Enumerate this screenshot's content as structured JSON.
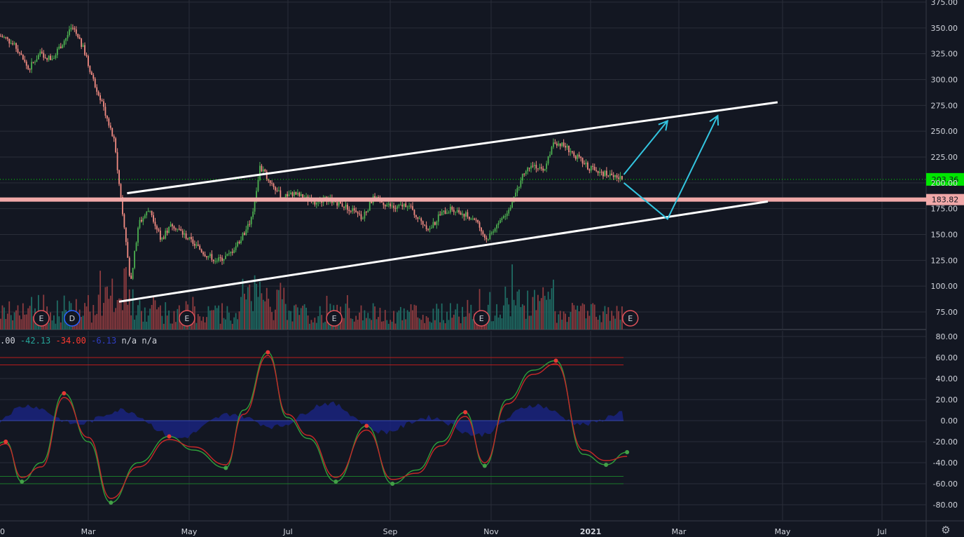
{
  "chart_data": [
    {
      "type": "candlestick",
      "panel": "price",
      "ylim": [
        62,
        375
      ],
      "price_ticks": [
        "75.00",
        "100.00",
        "125.00",
        "150.00",
        "175.00",
        "200.00",
        "225.00",
        "250.00",
        "275.00",
        "300.00",
        "325.00",
        "350.00",
        "375.00"
      ],
      "time_labels": [
        "0",
        "Mar",
        "May",
        "Jul",
        "Sep",
        "Nov",
        "2021",
        "Mar",
        "May",
        "Jul"
      ],
      "last_price": {
        "label": "203.36",
        "value": 203.36,
        "color": "#00e600"
      },
      "horizontal_level": {
        "label": "183.82",
        "value": 183.82,
        "color": "#f0a8a8"
      },
      "close_path": [
        [
          "2020-01-02",
          345
        ],
        [
          "2020-01-10",
          340
        ],
        [
          "2020-01-17",
          330
        ],
        [
          "2020-01-24",
          310
        ],
        [
          "2020-01-31",
          325
        ],
        [
          "2020-02-07",
          320
        ],
        [
          "2020-02-14",
          335
        ],
        [
          "2020-02-20",
          350
        ],
        [
          "2020-02-27",
          330
        ],
        [
          "2020-03-04",
          300
        ],
        [
          "2020-03-10",
          275
        ],
        [
          "2020-03-17",
          240
        ],
        [
          "2020-03-20",
          200
        ],
        [
          "2020-03-24",
          150
        ],
        [
          "2020-03-27",
          100
        ],
        [
          "2020-04-01",
          160
        ],
        [
          "2020-04-08",
          175
        ],
        [
          "2020-04-15",
          145
        ],
        [
          "2020-04-22",
          160
        ],
        [
          "2020-04-29",
          150
        ],
        [
          "2020-05-06",
          140
        ],
        [
          "2020-05-13",
          130
        ],
        [
          "2020-05-20",
          125
        ],
        [
          "2020-05-27",
          130
        ],
        [
          "2020-06-03",
          145
        ],
        [
          "2020-06-10",
          165
        ],
        [
          "2020-06-15",
          215
        ],
        [
          "2020-06-22",
          200
        ],
        [
          "2020-06-29",
          185
        ],
        [
          "2020-07-06",
          190
        ],
        [
          "2020-07-13",
          185
        ],
        [
          "2020-07-20",
          180
        ],
        [
          "2020-07-27",
          185
        ],
        [
          "2020-08-03",
          180
        ],
        [
          "2020-08-10",
          175
        ],
        [
          "2020-08-17",
          165
        ],
        [
          "2020-08-24",
          185
        ],
        [
          "2020-08-31",
          180
        ],
        [
          "2020-09-07",
          175
        ],
        [
          "2020-09-14",
          180
        ],
        [
          "2020-09-21",
          165
        ],
        [
          "2020-09-28",
          155
        ],
        [
          "2020-10-05",
          170
        ],
        [
          "2020-10-12",
          175
        ],
        [
          "2020-10-19",
          170
        ],
        [
          "2020-10-26",
          165
        ],
        [
          "2020-11-02",
          145
        ],
        [
          "2020-11-09",
          160
        ],
        [
          "2020-11-16",
          175
        ],
        [
          "2020-11-20",
          190
        ],
        [
          "2020-11-24",
          205
        ],
        [
          "2020-11-30",
          220
        ],
        [
          "2020-12-07",
          210
        ],
        [
          "2020-12-14",
          240
        ],
        [
          "2020-12-21",
          235
        ],
        [
          "2020-12-28",
          225
        ],
        [
          "2021-01-04",
          215
        ],
        [
          "2021-01-11",
          210
        ],
        [
          "2021-01-18",
          208
        ],
        [
          "2021-01-25",
          203.36
        ]
      ],
      "events": [
        {
          "date": "2020-02-01",
          "label": "E",
          "kind": "earnings"
        },
        {
          "date": "2020-02-20",
          "label": "D",
          "kind": "dividend"
        },
        {
          "date": "2020-05-01",
          "label": "E",
          "kind": "earnings"
        },
        {
          "date": "2020-07-31",
          "label": "E",
          "kind": "earnings"
        },
        {
          "date": "2020-10-30",
          "label": "E",
          "kind": "earnings"
        },
        {
          "date": "2021-01-30",
          "label": "E",
          "kind": "earnings"
        }
      ],
      "trendlines": [
        {
          "name": "upper-channel",
          "color": "#ffffff",
          "points": [
            [
              "2020-03-25",
              190
            ],
            [
              "2021-05-01",
              278
            ]
          ]
        },
        {
          "name": "lower-channel",
          "color": "#ffffff",
          "points": [
            [
              "2020-03-20",
              85
            ],
            [
              "2021-04-25",
              182
            ]
          ]
        },
        {
          "name": "projection-arrow-1",
          "color": "#33c5e0",
          "points": [
            [
              "2021-01-26",
              208
            ],
            [
              "2021-02-22",
              260
            ]
          ]
        },
        {
          "name": "projection-path-2",
          "color": "#33c5e0",
          "points": [
            [
              "2021-01-26",
              200
            ],
            [
              "2021-02-22",
              165
            ],
            [
              "2021-03-25",
              265
            ]
          ]
        }
      ]
    },
    {
      "type": "line",
      "panel": "oscillator",
      "ylim": [
        -90,
        85
      ],
      "osc_ticks": [
        "80.00",
        "60.00",
        "40.00",
        "20.00",
        "0.00",
        "-20.00",
        "-40.00",
        "-60.00",
        "-80.00"
      ],
      "legend": [
        {
          "text": ".00",
          "color": "#d1d4dc"
        },
        {
          "text": "-42.13",
          "color": "#26a69a"
        },
        {
          "text": "-34.00",
          "color": "#ff3b30"
        },
        {
          "text": "-6.13",
          "color": "#2f3ec2"
        },
        {
          "text": "n/a",
          "color": "#d1d4dc"
        },
        {
          "text": "n/a",
          "color": "#d1d4dc"
        }
      ],
      "levels": [
        {
          "value": 60,
          "color": "#b71c1c"
        },
        {
          "value": 53,
          "color": "#b71c1c"
        },
        {
          "value": -53,
          "color": "#1b7a2a"
        },
        {
          "value": -60,
          "color": "#1b7a2a"
        }
      ],
      "series": [
        {
          "name": "fast",
          "color": "#2e9e3a",
          "x": [
            "2020-01-01",
            "2020-01-10",
            "2020-01-20",
            "2020-02-01",
            "2020-02-15",
            "2020-03-01",
            "2020-03-15",
            "2020-04-01",
            "2020-04-20",
            "2020-05-05",
            "2020-05-25",
            "2020-06-05",
            "2020-06-20",
            "2020-07-02",
            "2020-07-15",
            "2020-08-01",
            "2020-08-20",
            "2020-09-05",
            "2020-09-20",
            "2020-10-05",
            "2020-10-20",
            "2020-11-01",
            "2020-11-15",
            "2020-12-01",
            "2020-12-15",
            "2021-01-01",
            "2021-01-15",
            "2021-01-28"
          ],
          "values": [
            -25,
            -20,
            -58,
            -40,
            26,
            -20,
            -78,
            -40,
            -15,
            -28,
            -45,
            10,
            65,
            3,
            -17,
            -58,
            -5,
            -60,
            -47,
            -20,
            8,
            -43,
            20,
            48,
            57,
            -32,
            -42,
            -30
          ]
        },
        {
          "name": "slow",
          "color": "#c62828",
          "x": [
            "2020-01-01",
            "2020-01-10",
            "2020-01-20",
            "2020-02-01",
            "2020-02-15",
            "2020-03-01",
            "2020-03-15",
            "2020-04-01",
            "2020-04-20",
            "2020-05-05",
            "2020-05-25",
            "2020-06-05",
            "2020-06-20",
            "2020-07-02",
            "2020-07-15",
            "2020-08-01",
            "2020-08-20",
            "2020-09-05",
            "2020-09-20",
            "2020-10-05",
            "2020-10-20",
            "2020-11-01",
            "2020-11-15",
            "2020-12-01",
            "2020-12-15",
            "2021-01-01",
            "2021-01-15",
            "2021-01-28"
          ],
          "values": [
            -28,
            -22,
            -54,
            -44,
            22,
            -16,
            -74,
            -44,
            -18,
            -25,
            -42,
            6,
            62,
            6,
            -14,
            -54,
            -9,
            -56,
            -50,
            -24,
            4,
            -40,
            16,
            44,
            54,
            -28,
            -38,
            -34
          ]
        }
      ]
    }
  ]
}
